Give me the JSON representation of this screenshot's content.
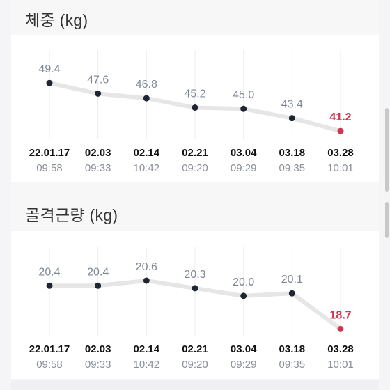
{
  "sections": [
    {
      "title": "체중 (kg)",
      "chart_data": {
        "type": "line",
        "title": "체중 (kg)",
        "categories": [
          {
            "date": "22.01.17",
            "time": "09:58"
          },
          {
            "date": "02.03",
            "time": "09:33"
          },
          {
            "date": "02.14",
            "time": "10:42"
          },
          {
            "date": "02.21",
            "time": "09:20"
          },
          {
            "date": "03.04",
            "time": "09:29"
          },
          {
            "date": "03.18",
            "time": "09:35"
          },
          {
            "date": "03.28",
            "time": "10:01"
          }
        ],
        "values": [
          49.4,
          47.6,
          46.8,
          45.2,
          45.0,
          43.4,
          41.2
        ],
        "value_labels": [
          "49.4",
          "47.6",
          "46.8",
          "45.2",
          "45.0",
          "43.4",
          "41.2"
        ],
        "highlight_index": 6,
        "ylim": [
          40.5,
          50.5
        ],
        "grid": "vertical",
        "colors": {
          "line": "#e6e6e6",
          "point": "#1f2533",
          "highlight": "#d0344f",
          "label": "#7f8797"
        }
      }
    },
    {
      "title": "골격근량 (kg)",
      "chart_data": {
        "type": "line",
        "title": "골격근량 (kg)",
        "categories": [
          {
            "date": "22.01.17",
            "time": "09:58"
          },
          {
            "date": "02.03",
            "time": "09:33"
          },
          {
            "date": "02.14",
            "time": "10:42"
          },
          {
            "date": "02.21",
            "time": "09:20"
          },
          {
            "date": "03.04",
            "time": "09:29"
          },
          {
            "date": "03.18",
            "time": "09:35"
          },
          {
            "date": "03.28",
            "time": "10:01"
          }
        ],
        "values": [
          20.4,
          20.4,
          20.6,
          20.3,
          20.0,
          20.1,
          18.7
        ],
        "value_labels": [
          "20.4",
          "20.4",
          "20.6",
          "20.3",
          "20.0",
          "20.1",
          "18.7"
        ],
        "highlight_index": 6,
        "ylim": [
          18.6,
          20.9
        ],
        "grid": "vertical",
        "colors": {
          "line": "#e6e6e6",
          "point": "#1f2533",
          "highlight": "#d0344f",
          "label": "#7f8797"
        }
      }
    }
  ]
}
